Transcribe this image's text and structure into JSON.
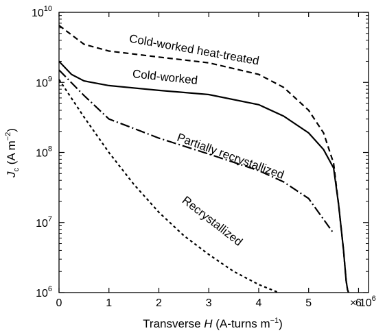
{
  "chart_data": {
    "type": "line",
    "title": "",
    "xlabel": {
      "prefix": "Transverse ",
      "italic": "H",
      "suffix": " (A-turns m",
      "sup": "−1",
      "close": ")"
    },
    "ylabel": {
      "main": "J",
      "sub": "c",
      "unit": " (A m",
      "sup": "−2",
      "close": ")"
    },
    "xlim": [
      0,
      6.2
    ],
    "ylim": [
      1000000.0,
      10000000000.0
    ],
    "yscale": "log",
    "grid": false,
    "legend": "none",
    "x_multiplier_label": "× 10",
    "x_multiplier_exp": "6",
    "xticks": [
      {
        "value": 0,
        "label": "0"
      },
      {
        "value": 1,
        "label": "1"
      },
      {
        "value": 2,
        "label": "2"
      },
      {
        "value": 3,
        "label": "3"
      },
      {
        "value": 4,
        "label": "4"
      },
      {
        "value": 5,
        "label": "5"
      },
      {
        "value": 6,
        "label": "6"
      }
    ],
    "yticks": [
      {
        "value": 1000000.0,
        "base": "10",
        "exp": "6"
      },
      {
        "value": 10000000.0,
        "base": "10",
        "exp": "7"
      },
      {
        "value": 100000000.0,
        "base": "10",
        "exp": "8"
      },
      {
        "value": 1000000000.0,
        "base": "10",
        "exp": "9"
      },
      {
        "value": 10000000000.0,
        "base": "10",
        "exp": "10"
      }
    ],
    "series": [
      {
        "name": "Cold-worked heat-treated",
        "dash": "8,5",
        "x": [
          0,
          0.5,
          1,
          2,
          3,
          4,
          4.5,
          5,
          5.3,
          5.5,
          5.6,
          5.7,
          5.75,
          5.78,
          5.8
        ],
        "y": [
          6500000000.0,
          3500000000.0,
          2800000000.0,
          2300000000.0,
          1900000000.0,
          1300000000.0,
          850000000.0,
          400000000.0,
          190000000.0,
          70000000.0,
          18000000.0,
          4000000.0,
          1500000.0,
          1100000.0,
          1000000.0
        ],
        "label_angle": 10
      },
      {
        "name": "Cold-worked",
        "dash": "",
        "x": [
          0,
          0.25,
          0.5,
          1,
          2,
          3,
          4,
          4.5,
          5,
          5.3,
          5.5,
          5.6,
          5.7,
          5.75,
          5.78,
          5.8
        ],
        "y": [
          2000000000.0,
          1300000000.0,
          1050000000.0,
          900000000.0,
          770000000.0,
          670000000.0,
          480000000.0,
          330000000.0,
          190000000.0,
          110000000.0,
          60000000.0,
          18000000.0,
          4000000.0,
          1500000.0,
          1100000.0,
          1000000.0
        ],
        "label_angle": 6
      },
      {
        "name": "Partially recrystallized",
        "dash": "14,4,2,4",
        "x": [
          0,
          0.5,
          1,
          1.5,
          2,
          3,
          4,
          4.5,
          5,
          5.5
        ],
        "y": [
          1500000000.0,
          650000000.0,
          300000000.0,
          220000000.0,
          160000000.0,
          95000000.0,
          55000000.0,
          38000000.0,
          22000000.0,
          7000000.0
        ],
        "label_angle": 20
      },
      {
        "name": "Recrystallized",
        "dash": "4,4",
        "x": [
          0,
          0.5,
          1,
          1.5,
          2,
          2.5,
          3,
          3.5,
          4,
          4.4
        ],
        "y": [
          1100000000.0,
          320000000.0,
          100000000.0,
          35000000.0,
          14000000.0,
          6500000.0,
          3500000.0,
          2000000.0,
          1300000.0,
          1000000.0
        ],
        "label_angle": 38
      }
    ]
  }
}
